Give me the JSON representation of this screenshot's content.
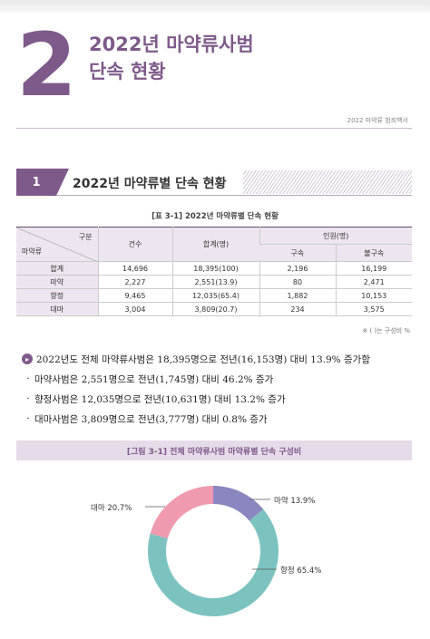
{
  "chapter": {
    "number": "2",
    "title_line1": "2022년 마약류사범",
    "title_line2": "단속 현황",
    "header_right": "2022 마약류 범죄백서"
  },
  "section": {
    "number": "1",
    "title": "2022년 마약류별 단속 현황"
  },
  "table": {
    "caption": "[표 3-1] 2022년 마약류별 단속 현황",
    "header": {
      "diag_top": "구분",
      "diag_bottom": "마약류",
      "count": "건수",
      "total": "합계(명)",
      "persons": "인원(명)",
      "arrested": "구속",
      "not_arrested": "불구속"
    },
    "rows": [
      {
        "label": "합계",
        "count": "14,696",
        "total": "18,395(100)",
        "arrested": "2,196",
        "not_arrested": "16,199"
      },
      {
        "label": "마약",
        "count": "2,227",
        "total": "2,551(13.9)",
        "arrested": "80",
        "not_arrested": "2,471"
      },
      {
        "label": "향정",
        "count": "9,465",
        "total": "12,035(65.4)",
        "arrested": "1,882",
        "not_arrested": "10,153"
      },
      {
        "label": "대마",
        "count": "3,004",
        "total": "3,809(20.7)",
        "arrested": "234",
        "not_arrested": "3,575"
      }
    ],
    "note": "※ ( )는 구성비 %"
  },
  "summary": {
    "main": "2022년도 전체 마약류사범은 18,395명으로 전년(16,153명) 대비 13.9% 증가함",
    "items": [
      "마약사범은 2,551명으로 전년(1,745명) 대비 46.2% 증가",
      "향정사범은 12,035명으로 전년(10,631명) 대비 13.2% 증가",
      "대마사범은 3,809명으로 전년(3,777명) 대비 0.8% 증가"
    ]
  },
  "figure": {
    "caption": "[그림 3-1] 전체 마약류사범 마약류별 단속 구성비"
  },
  "chart_data": {
    "type": "pie",
    "donut": true,
    "slices": [
      {
        "label": "마약 13.9%",
        "name": "마약",
        "value": 13.9,
        "color": "#8a86c0"
      },
      {
        "label": "향정 65.4%",
        "name": "향정",
        "value": 65.4,
        "color": "#7cc3c0"
      },
      {
        "label": "대마 20.7%",
        "name": "대마",
        "value": 20.7,
        "color": "#ef9aae"
      }
    ]
  }
}
